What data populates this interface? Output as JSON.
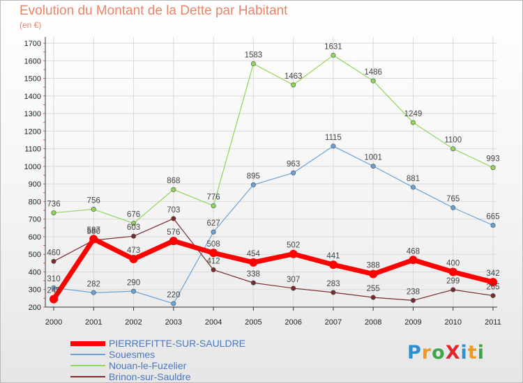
{
  "title": "Evolution du Montant de la Dette par Habitant",
  "subtitle": "(en €)",
  "logo": {
    "text": "ProXiti",
    "letters": [
      {
        "ch": "P",
        "color": "#2f8fd0"
      },
      {
        "ch": "r",
        "color": "#f29a1f"
      },
      {
        "ch": "o",
        "color": "#3aa847"
      },
      {
        "ch": "X",
        "color": "#e3262b"
      },
      {
        "ch": "i",
        "color": "#2f8fd0"
      },
      {
        "ch": "t",
        "color": "#f29a1f"
      },
      {
        "ch": "i",
        "color": "#3aa847"
      }
    ]
  },
  "chart_data": {
    "type": "line",
    "x": [
      "2000",
      "2001",
      "2002",
      "2003",
      "2004",
      "2005",
      "2006",
      "2007",
      "2008",
      "2009",
      "2010",
      "2011"
    ],
    "ylim": [
      200,
      1700
    ],
    "yticks": [
      200,
      300,
      400,
      500,
      600,
      700,
      800,
      900,
      1000,
      1100,
      1200,
      1300,
      1400,
      1500,
      1600,
      1700
    ],
    "grid": true,
    "legend": "bottom-left",
    "series": [
      {
        "name": "Nouan-le-Fuzelier",
        "color": "#8fd65a",
        "width": 1.2,
        "values": [
          736,
          756,
          676,
          868,
          776,
          1583,
          1463,
          1631,
          1486,
          1249,
          1100,
          993
        ],
        "labels": [
          "736",
          "756",
          "676",
          "868",
          "776",
          "1583",
          "1463",
          "1631",
          "1486",
          "1249",
          "1100",
          "993"
        ]
      },
      {
        "name": "Souesmes",
        "color": "#6aa2d8",
        "width": 1.2,
        "values": [
          310,
          282,
          290,
          220,
          627,
          895,
          963,
          1115,
          1001,
          881,
          765,
          665
        ],
        "labels": [
          "310",
          "282",
          "290",
          "220",
          "627",
          "895",
          "963",
          "1115",
          "1001",
          "881",
          "765",
          "665"
        ]
      },
      {
        "name": "Brinon-sur-Sauldre",
        "color": "#7a2a2a",
        "width": 1.2,
        "values": [
          460,
          580,
          603,
          703,
          412,
          338,
          307,
          283,
          255,
          238,
          299,
          265
        ],
        "labels": [
          "460",
          "580",
          "603",
          "703",
          "412",
          "338",
          "307",
          "283",
          "255",
          "238",
          "299",
          "265"
        ]
      },
      {
        "name": "PIERREFITTE-SUR-SAULDRE",
        "color": "#ff0000",
        "width": 7,
        "values": [
          245,
          587,
          473,
          576,
          508,
          454,
          502,
          441,
          388,
          468,
          400,
          342
        ],
        "labels": [
          "245",
          "587",
          "473",
          "576",
          "508",
          "454",
          "502",
          "441",
          "388",
          "468",
          "400",
          "342"
        ]
      }
    ]
  },
  "legend_items": [
    {
      "name": "PIERREFITTE-SUR-SAULDRE",
      "color": "#ff0000",
      "thickness": 7
    },
    {
      "name": "Souesmes",
      "color": "#6aa2d8",
      "thickness": 2
    },
    {
      "name": "Nouan-le-Fuzelier",
      "color": "#8fd65a",
      "thickness": 2
    },
    {
      "name": "Brinon-sur-Sauldre",
      "color": "#7a2a2a",
      "thickness": 2
    }
  ]
}
